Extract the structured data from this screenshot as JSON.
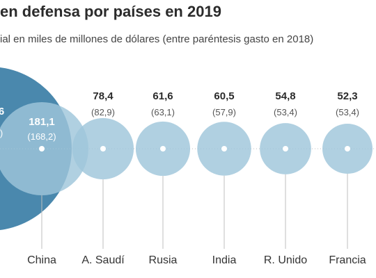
{
  "title": "en defensa por países en 2019",
  "subtitle": "ial en miles de millones de dólares (entre paréntesis gasto en 2018)",
  "colors": {
    "big": "#4a88ad",
    "small": "#9fc6da",
    "dot": "#ffffff",
    "axis": "#bfbfbf"
  },
  "chart_data": {
    "type": "scatter",
    "encoding": "bubble-area",
    "categories": [
      "China",
      "A. Saudí",
      "Rusia",
      "India",
      "R. Unido",
      "Francia"
    ],
    "series": [
      {
        "name": "2019",
        "values": [
          181.1,
          78.4,
          61.6,
          60.5,
          54.8,
          52.3
        ]
      },
      {
        "name": "2018",
        "values": [
          168.2,
          82.9,
          63.1,
          57.9,
          53.4,
          53.4
        ]
      }
    ],
    "value_labels": [
      "181,1",
      "78,4",
      "61,6",
      "60,5",
      "54,8",
      "52,3"
    ],
    "prev_labels": [
      "(168,2)",
      "(82,9)",
      "(63,1)",
      "(57,9)",
      "(53,4)",
      "(53,4)"
    ],
    "cropped_leading_bubble": {
      "value_fragment": "6",
      "prev_fragment": ")"
    },
    "title": "en defensa por países en 2019",
    "xlabel": "",
    "ylabel": ""
  }
}
